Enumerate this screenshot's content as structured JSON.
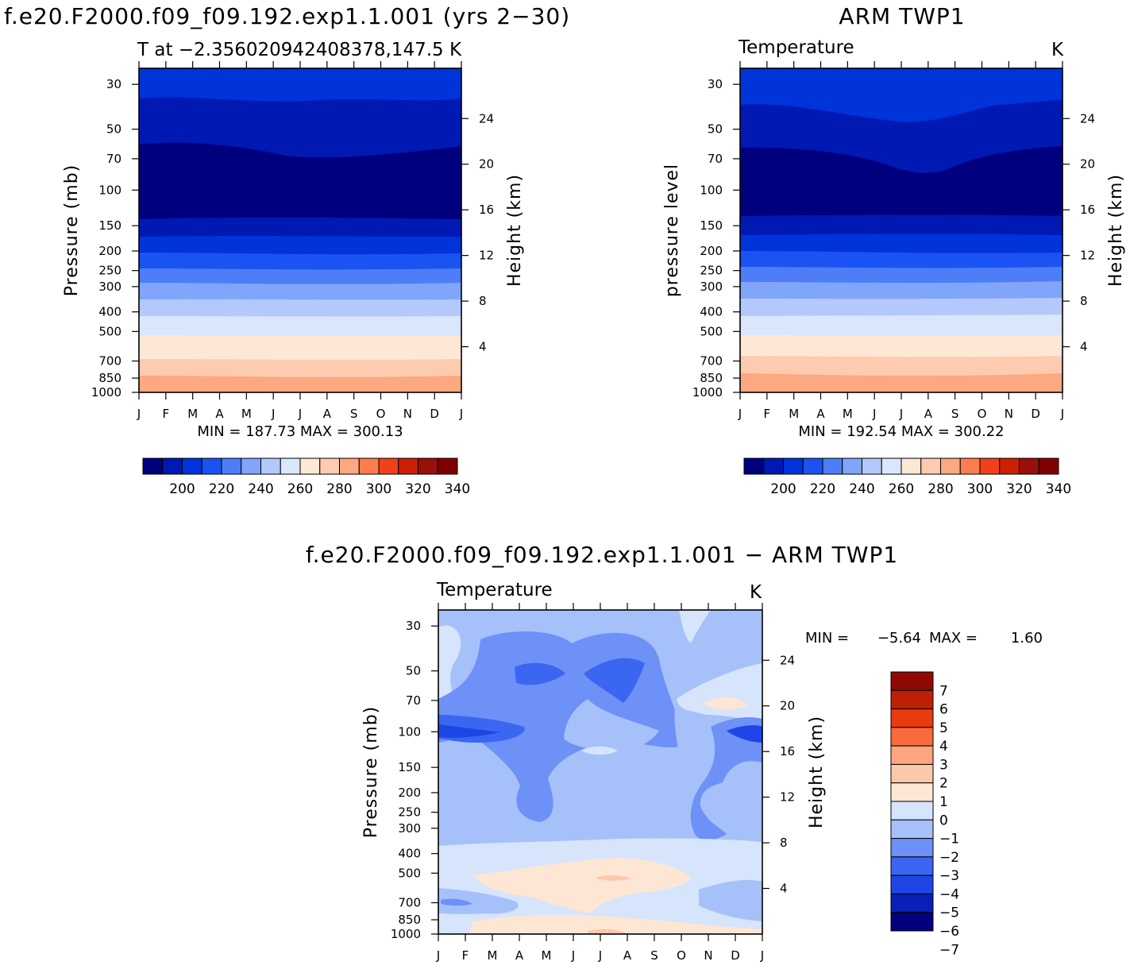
{
  "colors": {
    "abs_levels": [
      "#00007f",
      "#0019b3",
      "#0033d9",
      "#1a53f2",
      "#4d7ef7",
      "#80a5fa",
      "#b3c9fc",
      "#d9e6fc",
      "#fde8d6",
      "#fdcbb0",
      "#fca880",
      "#fc7d4e",
      "#f2411a",
      "#cc2006",
      "#99100a",
      "#7f0000"
    ],
    "diff_levels": [
      "#00007f",
      "#0a1fb8",
      "#1e46e6",
      "#3a66f2",
      "#6d91f7",
      "#a6c0fa",
      "#d6e4fc",
      "#fde6d4",
      "#fcc8aa",
      "#fca57f",
      "#f96a3c",
      "#e93a10",
      "#bd2006",
      "#8f0a03"
    ]
  },
  "panels": [
    {
      "title": "f.e20.F2000.f09_f09.192.exp1.1.001 (yrs 2−30)",
      "subtitle": "T at −2.356020942408378,147.5",
      "units": "K",
      "ylabel": "Pressure (mb)",
      "y2label": "Height (km)",
      "minmax": "MIN = 187.73 MAX = 300.13"
    },
    {
      "title": "ARM TWP1",
      "subtitle": "Temperature",
      "units": "K",
      "ylabel": "pressure level",
      "y2label": "Height (km)",
      "minmax": "MIN = 192.54 MAX = 300.22"
    },
    {
      "title": "f.e20.F2000.f09_f09.192.exp1.1.001 − ARM TWP1",
      "subtitle": "Temperature",
      "units": "K",
      "ylabel": "Pressure (mb)",
      "y2label": "Height (km)",
      "minmax_label_min": "MIN =",
      "minmax_min": "−5.64",
      "minmax_label_max": "MAX =",
      "minmax_max": "1.60"
    }
  ],
  "chart_data": [
    {
      "type": "heatmap",
      "title": "f.e20.F2000.f09_f09.192.exp1.1.001 (yrs 2−30)",
      "xlabel": "",
      "ylabel": "Pressure (mb)",
      "y2label": "Height (km)",
      "x_ticks": [
        "J",
        "F",
        "M",
        "A",
        "M",
        "J",
        "J",
        "A",
        "S",
        "O",
        "N",
        "D",
        "J"
      ],
      "y_ticks": [
        30,
        50,
        70,
        100,
        150,
        200,
        250,
        300,
        400,
        500,
        700,
        850,
        1000
      ],
      "y2_ticks": [
        24,
        20,
        16,
        12,
        8,
        4
      ],
      "colorbar_ticks": [
        200,
        220,
        240,
        260,
        280,
        300,
        320,
        340
      ],
      "min": 187.73,
      "max": 300.13
    },
    {
      "type": "heatmap",
      "title": "ARM TWP1",
      "xlabel": "",
      "ylabel": "pressure level",
      "y2label": "Height (km)",
      "x_ticks": [
        "J",
        "F",
        "M",
        "A",
        "M",
        "J",
        "J",
        "A",
        "S",
        "O",
        "N",
        "D",
        "J"
      ],
      "y_ticks": [
        30,
        50,
        70,
        100,
        150,
        200,
        250,
        300,
        400,
        500,
        700,
        850,
        1000
      ],
      "y2_ticks": [
        24,
        20,
        16,
        12,
        8,
        4
      ],
      "colorbar_ticks": [
        200,
        220,
        240,
        260,
        280,
        300,
        320,
        340
      ],
      "min": 192.54,
      "max": 300.22
    },
    {
      "type": "heatmap",
      "title": "f.e20.F2000.f09_f09.192.exp1.1.001 − ARM TWP1",
      "xlabel": "",
      "ylabel": "Pressure (mb)",
      "y2label": "Height (km)",
      "x_ticks": [
        "J",
        "F",
        "M",
        "A",
        "M",
        "J",
        "J",
        "A",
        "S",
        "O",
        "N",
        "D",
        "J"
      ],
      "y_ticks": [
        30,
        50,
        70,
        100,
        150,
        200,
        250,
        300,
        400,
        500,
        700,
        850,
        1000
      ],
      "y2_ticks": [
        24,
        20,
        16,
        12,
        8,
        4
      ],
      "colorbar_ticks": [
        "7",
        "6",
        "5",
        "4",
        "3",
        "2",
        "1",
        "0",
        "−1",
        "−2",
        "−3",
        "−4",
        "−5",
        "−6",
        "−7"
      ],
      "min": -5.64,
      "max": 1.6
    }
  ]
}
